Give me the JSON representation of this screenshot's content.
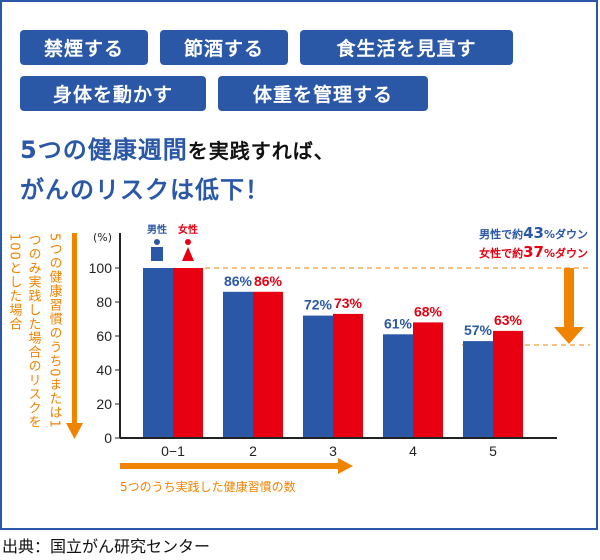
{
  "tags": [
    "禁煙する",
    "節酒する",
    "食生活を見直す",
    "身体を動かす",
    "体重を管理する"
  ],
  "headline": {
    "line1_blue": "5つの健康週間",
    "line1_black": "を実践すれば、",
    "line2": "がんのリスクは低下！"
  },
  "source": "出典：国立がん研究センター",
  "colors": {
    "male": "#2b58a6",
    "female": "#e60012",
    "accent": "#f08300"
  },
  "chart_data": {
    "type": "bar",
    "categories": [
      "0−1",
      "2",
      "3",
      "4",
      "5"
    ],
    "series": [
      {
        "name": "男性",
        "values": [
          100,
          86,
          72,
          61,
          57
        ],
        "labels": [
          "",
          "86%",
          "72%",
          "61%",
          "57%"
        ]
      },
      {
        "name": "女性",
        "values": [
          100,
          86,
          73,
          68,
          63
        ],
        "labels": [
          "",
          "86%",
          "73%",
          "68%",
          "63%"
        ]
      }
    ],
    "yunit": "(%)",
    "yticks": [
      "0",
      "20",
      "40",
      "60",
      "80",
      "100"
    ],
    "ylim": [
      0,
      100
    ],
    "ylabel_lines": [
      "5つの健康習慣のうち0または1",
      "つのみ実践した場合のリスクを",
      "100とした場合"
    ],
    "xlabel": "5つのうち実践した健康習慣の数",
    "annotations": {
      "male": {
        "pre": "男性で約",
        "num": "43",
        "post": "%ダウン"
      },
      "female": {
        "pre": "女性で約",
        "num": "37",
        "post": "%ダウン"
      }
    }
  }
}
